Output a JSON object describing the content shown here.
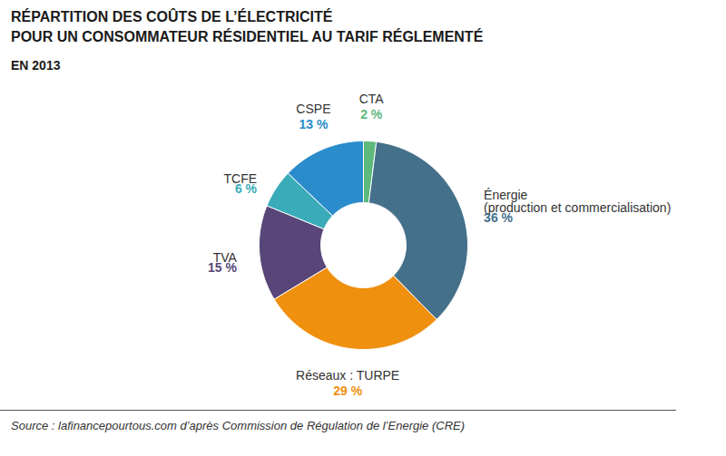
{
  "chart_data": {
    "type": "donut",
    "title": "RÉPARTITION DES COÛTS DE L’ÉLECTRICITÉ\nPOUR UN CONSOMMATEUR RÉSIDENTIEL AU TARIF RÉGLEMENTÉ",
    "subtitle": "EN 2013",
    "categories": [
      "CTA",
      "Énergie\n(production et commercialisation)",
      "Réseaux : TURPE",
      "TVA",
      "TCFE",
      "CSPE"
    ],
    "values": [
      2,
      36,
      29,
      15,
      6,
      13
    ],
    "value_labels": [
      "2 %",
      "36 %",
      "29 %",
      "15 %",
      "6 %",
      "13 %"
    ],
    "colors": [
      "#5dba7c",
      "#44708a",
      "#f0900f",
      "#574677",
      "#3aabb9",
      "#2b8ccb"
    ],
    "data_labels": true,
    "caption": "Source : lafinancepourtous.com d’après Commission de Régulation de l’Energie (CRE)"
  }
}
